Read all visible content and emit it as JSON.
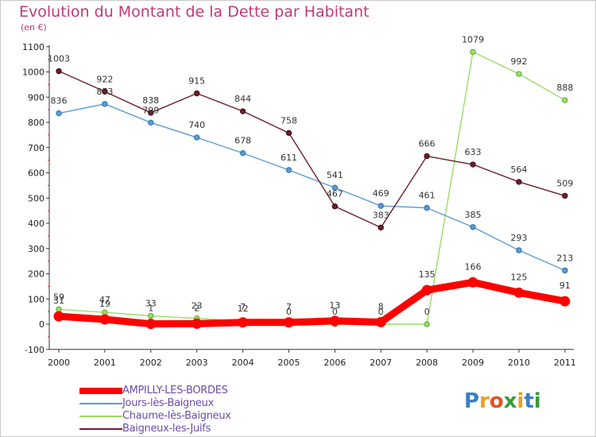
{
  "title": "Evolution du Montant de la Dette par Habitant",
  "subtitle": "(en €)",
  "chart_data": {
    "type": "line",
    "title": "Evolution du Montant de la Dette par Habitant",
    "subtitle": "(en €)",
    "categories": [
      "2000",
      "2001",
      "2002",
      "2003",
      "2004",
      "2005",
      "2006",
      "2007",
      "2008",
      "2009",
      "2010",
      "2011"
    ],
    "ylim": [
      -100,
      1100
    ],
    "yticks": [
      -100,
      0,
      100,
      200,
      300,
      400,
      500,
      600,
      700,
      800,
      900,
      1000,
      1100
    ],
    "grid": false,
    "legend_position": "bottom-left",
    "series": [
      {
        "name": "AMPILLY-LES-BORDES",
        "color": "#ff0000",
        "labels": [
          "31",
          "19",
          "1",
          "2",
          "7",
          "7",
          "13",
          "8",
          "135",
          "166",
          "125",
          "91"
        ],
        "values": [
          31,
          19,
          1,
          2,
          7,
          7,
          13,
          8,
          135,
          166,
          125,
          91
        ]
      },
      {
        "name": "Jours-lès-Baigneux",
        "color": "#5b9bd5",
        "labels": [
          "836",
          "873",
          "799",
          "740",
          "678",
          "611",
          "541",
          "469",
          "461",
          "385",
          "293",
          "213"
        ],
        "values": [
          836,
          873,
          799,
          740,
          678,
          611,
          541,
          469,
          461,
          385,
          293,
          213
        ]
      },
      {
        "name": "Chaume-lès-Baigneux",
        "color": "#99dd66",
        "labels": [
          "59",
          "47",
          "33",
          "23",
          "12",
          "0",
          "0",
          "0",
          "0",
          "1079",
          "992",
          "888"
        ],
        "values": [
          59,
          47,
          33,
          23,
          12,
          0,
          0,
          0,
          0,
          1079,
          992,
          888
        ]
      },
      {
        "name": "Baigneux-les-Juifs",
        "color": "#6b1f2a",
        "labels": [
          "1003",
          "922",
          "838",
          "915",
          "844",
          "758",
          "467",
          "383",
          "666",
          "633",
          "564",
          "509"
        ],
        "values": [
          1003,
          922,
          838,
          915,
          844,
          758,
          467,
          383,
          666,
          633,
          564,
          509
        ]
      }
    ]
  },
  "logo": {
    "letters": [
      "P",
      "r",
      "o",
      "x",
      "i",
      "t",
      "i"
    ],
    "colors": [
      "#3a7fc4",
      "#e8a020",
      "#e85020",
      "#3a9a3a",
      "#e8a020",
      "#3a7fc4",
      "#3a9a3a"
    ]
  }
}
